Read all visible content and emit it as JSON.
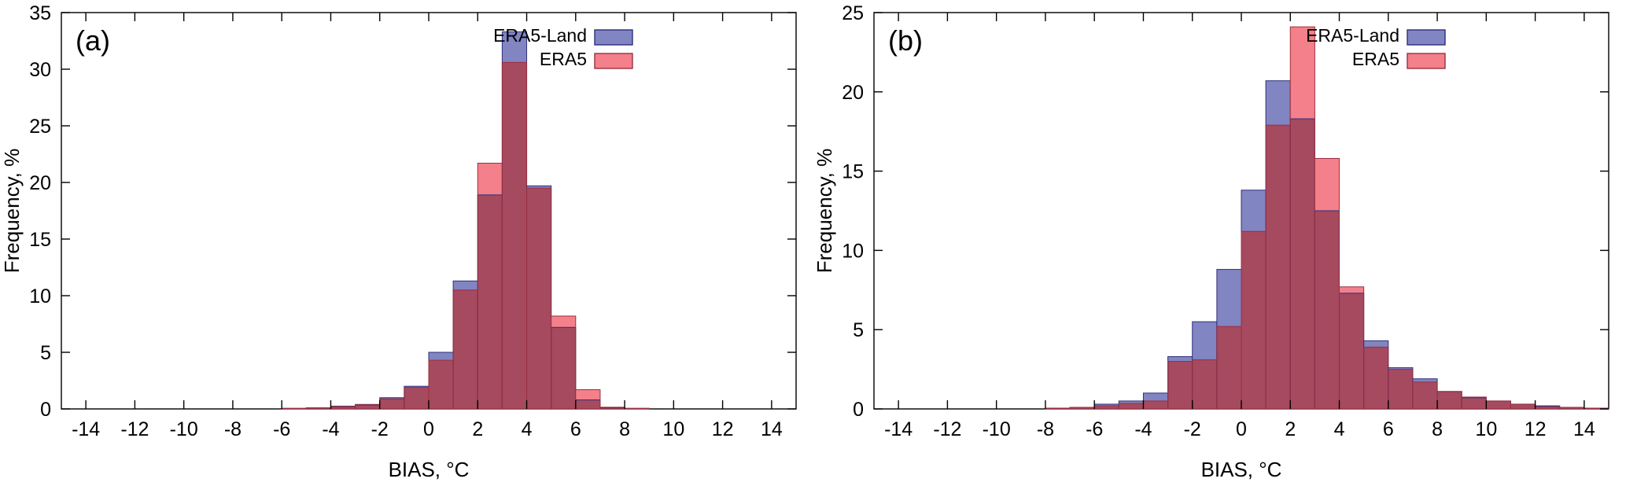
{
  "figure": {
    "background": "#ffffff"
  },
  "colors": {
    "blue_fill": "#8185c2",
    "blue_stroke": "#2f2f7a",
    "red_fill": "#f3808a",
    "red_stroke": "#9c2f3f",
    "overlap_fill": "#a54a5f",
    "axis_color": "#000000",
    "text_color": "#000000"
  },
  "chart_data": [
    {
      "type": "bar",
      "subtype": "overlaid-histogram",
      "panel_label": "(a)",
      "xlabel": "BIAS, °C",
      "ylabel": "Frequency, %",
      "xlim": [
        -15,
        15
      ],
      "ylim": [
        0,
        35
      ],
      "ytick_step": 5,
      "xticks": [
        -14,
        -12,
        -10,
        -8,
        -6,
        -4,
        -2,
        0,
        2,
        4,
        6,
        8,
        10,
        12,
        14
      ],
      "bin_width": 1,
      "bins_start": -6,
      "legend": [
        "ERA5-Land",
        "ERA5"
      ],
      "legend_position": "top-right-inside",
      "grid": false,
      "series": [
        {
          "name": "ERA5-Land",
          "values": [
            0.05,
            0.1,
            0.2,
            0.35,
            0.9,
            2.0,
            5.0,
            11.3,
            18.9,
            33.3,
            19.7,
            7.2,
            0.8,
            0.1,
            0.05
          ]
        },
        {
          "name": "ERA5",
          "values": [
            0.05,
            0.1,
            0.25,
            0.4,
            1.0,
            1.9,
            4.3,
            10.5,
            21.7,
            30.6,
            19.5,
            8.2,
            1.7,
            0.15,
            0.05
          ]
        }
      ]
    },
    {
      "type": "bar",
      "subtype": "overlaid-histogram",
      "panel_label": "(b)",
      "xlabel": "BIAS, °C",
      "ylabel": "Frequency, %",
      "xlim": [
        -15,
        15
      ],
      "ylim": [
        0,
        25
      ],
      "ytick_step": 5,
      "xticks": [
        -14,
        -12,
        -10,
        -8,
        -6,
        -4,
        -2,
        0,
        2,
        4,
        6,
        8,
        10,
        12,
        14
      ],
      "bin_width": 1,
      "bins_start": -8,
      "legend": [
        "ERA5-Land",
        "ERA5"
      ],
      "legend_position": "top-right-inside",
      "grid": false,
      "series": [
        {
          "name": "ERA5-Land",
          "values": [
            0.05,
            0.1,
            0.3,
            0.5,
            1.0,
            3.3,
            5.5,
            8.8,
            13.8,
            20.7,
            18.3,
            12.5,
            7.3,
            4.3,
            2.6,
            1.9,
            1.1,
            0.7,
            0.5,
            0.3,
            0.15,
            0.1,
            0.05
          ]
        },
        {
          "name": "ERA5",
          "values": [
            0.05,
            0.1,
            0.2,
            0.35,
            0.5,
            3.0,
            3.1,
            5.2,
            11.2,
            17.9,
            24.1,
            15.8,
            7.7,
            3.9,
            2.5,
            1.7,
            1.1,
            0.75,
            0.5,
            0.3,
            0.2,
            0.1,
            0.05
          ]
        }
      ]
    }
  ]
}
